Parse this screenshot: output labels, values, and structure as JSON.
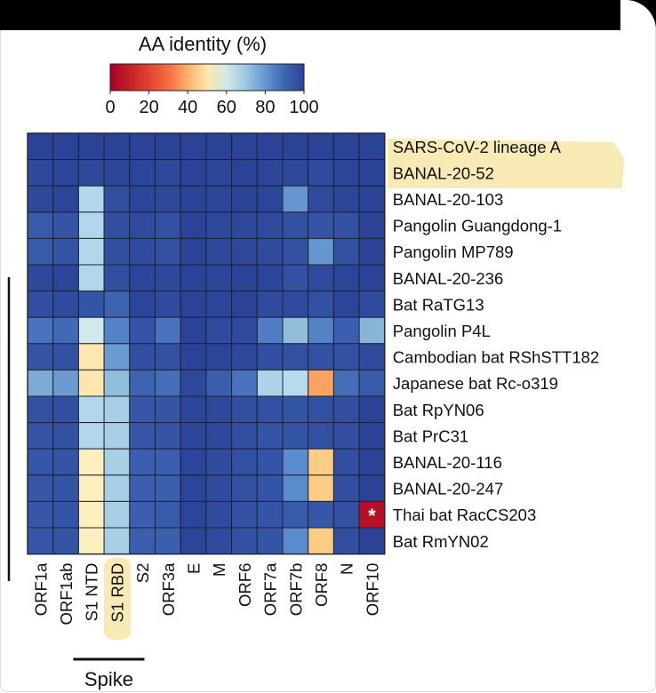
{
  "chart_data": {
    "type": "heatmap",
    "colorbar": {
      "title": "AA identity (%)",
      "ticks": [
        "0",
        "20",
        "40",
        "60",
        "80",
        "100"
      ],
      "range": [
        0,
        100
      ]
    },
    "columns": [
      "ORF1a",
      "ORF1ab",
      "S1 NTD",
      "S1 RBD",
      "S2",
      "ORF3a",
      "E",
      "M",
      "ORF6",
      "ORF7a",
      "ORF7b",
      "ORF8",
      "N",
      "ORF10"
    ],
    "rows": [
      "SARS-CoV-2 lineage A",
      "BANAL-20-52",
      "BANAL-20-103",
      "Pangolin Guangdong-1",
      "Pangolin MP789",
      "BANAL-20-236",
      "Bat RaTG13",
      "Pangolin P4L",
      "Cambodian bat RShSTT182",
      "Japanese bat Rc-o319",
      "Bat RpYN06",
      "Bat PrC31",
      "BANAL-20-116",
      "BANAL-20-247",
      "Thai bat RacCS203",
      "Bat RmYN02"
    ],
    "highlighted_rows": [
      0,
      1
    ],
    "highlighted_columns": [
      3
    ],
    "values": [
      [
        100,
        100,
        100,
        100,
        100,
        100,
        100,
        100,
        100,
        100,
        100,
        100,
        100,
        100
      ],
      [
        98,
        99,
        98,
        99,
        99,
        98,
        100,
        99,
        100,
        99,
        98,
        97,
        99,
        100
      ],
      [
        98,
        99,
        66,
        96,
        99,
        98,
        100,
        99,
        100,
        99,
        80,
        97,
        99,
        100
      ],
      [
        92,
        94,
        66,
        96,
        97,
        95,
        100,
        98,
        98,
        97,
        95,
        94,
        95,
        100
      ],
      [
        92,
        94,
        66,
        96,
        97,
        95,
        100,
        98,
        98,
        97,
        95,
        80,
        95,
        100
      ],
      [
        98,
        99,
        66,
        96,
        99,
        98,
        100,
        99,
        100,
        99,
        95,
        97,
        99,
        100
      ],
      [
        96,
        97,
        94,
        90,
        99,
        97,
        100,
        99,
        100,
        97,
        97,
        95,
        99,
        97
      ],
      [
        87,
        89,
        60,
        84,
        94,
        87,
        100,
        97,
        97,
        85,
        72,
        84,
        91,
        74
      ],
      [
        94,
        95,
        50,
        79,
        96,
        95,
        100,
        99,
        98,
        96,
        95,
        95,
        95,
        97
      ],
      [
        76,
        79,
        50,
        72,
        90,
        88,
        98,
        91,
        87,
        67,
        65,
        38,
        88,
        92
      ],
      [
        95,
        96,
        66,
        68,
        93,
        94,
        99,
        98,
        96,
        95,
        94,
        95,
        96,
        100
      ],
      [
        94,
        95,
        66,
        68,
        93,
        94,
        99,
        98,
        96,
        94,
        94,
        95,
        96,
        100
      ],
      [
        93,
        94,
        52,
        68,
        91,
        91,
        99,
        97,
        95,
        94,
        82,
        45,
        96,
        100
      ],
      [
        93,
        94,
        52,
        68,
        91,
        91,
        99,
        97,
        95,
        94,
        82,
        45,
        96,
        100
      ],
      [
        93,
        94,
        52,
        68,
        91,
        92,
        99,
        97,
        95,
        94,
        92,
        93,
        95,
        5
      ],
      [
        93,
        94,
        52,
        68,
        91,
        91,
        99,
        97,
        95,
        94,
        82,
        45,
        96,
        100
      ]
    ],
    "annotations": [
      {
        "row": 14,
        "col": 13,
        "text": "*"
      }
    ],
    "group_label": {
      "text": "Spike",
      "columns": [
        2,
        4
      ]
    },
    "colors": {
      "highlight": "#f7e6a8",
      "grid": "#1c2333",
      "star": "#ffffff"
    }
  }
}
